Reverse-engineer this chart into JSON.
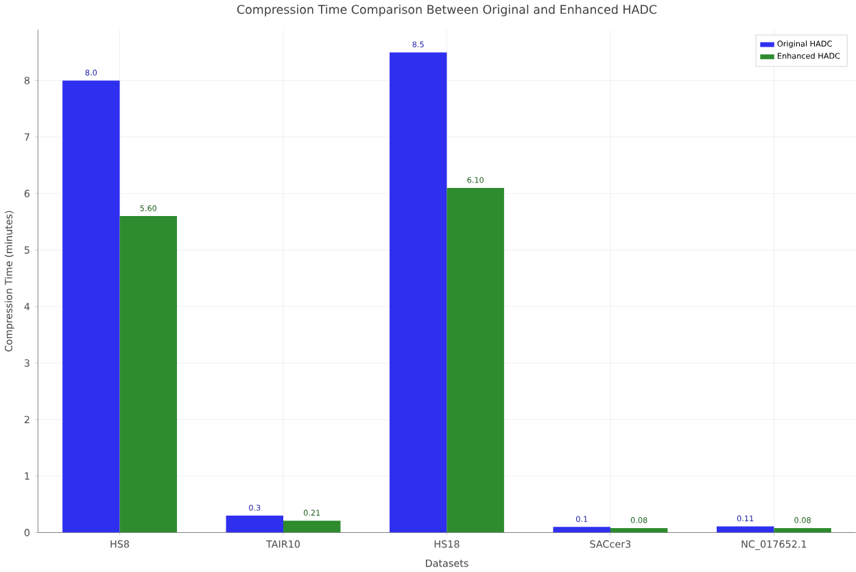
{
  "chart_data": {
    "type": "bar",
    "title": "Compression Time Comparison Between Original and Enhanced HADC",
    "xlabel": "Datasets",
    "ylabel": "Compression Time (minutes)",
    "categories": [
      "HS8",
      "TAIR10",
      "HS18",
      "SACcer3",
      "NC_017652.1"
    ],
    "series": [
      {
        "name": "Original HADC",
        "color": "#2f2ff0",
        "values": [
          8.0,
          0.3,
          8.5,
          0.1,
          0.11
        ],
        "value_labels": [
          "8.0",
          "0.3",
          "8.5",
          "0.1",
          "0.11"
        ]
      },
      {
        "name": "Enhanced HADC",
        "color": "#2e8b2e",
        "values": [
          5.6,
          0.21,
          6.1,
          0.08,
          0.08
        ],
        "value_labels": [
          "5.60",
          "0.21",
          "6.10",
          "0.08",
          "0.08"
        ]
      }
    ],
    "ylim": [
      0,
      8.9
    ],
    "yticks": [
      0,
      1,
      2,
      3,
      4,
      5,
      6,
      7,
      8
    ],
    "grid": true,
    "legend": "top right"
  }
}
